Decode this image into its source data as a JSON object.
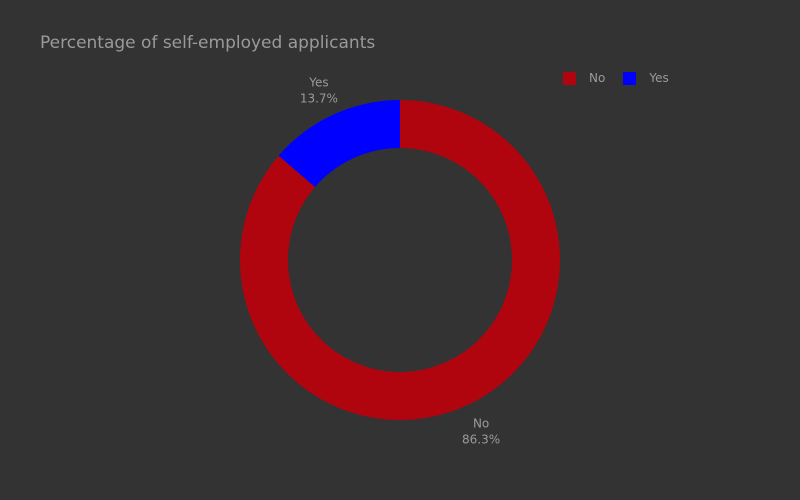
{
  "chart_data": {
    "type": "pie",
    "title": "Percentage of self-employed applicants",
    "hole": true,
    "categories": [
      "No",
      "Yes"
    ],
    "values": [
      86.3,
      13.7
    ],
    "labels": [
      "86.3%",
      "13.7%"
    ],
    "colors": [
      "#b0050f",
      "#0000ff"
    ],
    "legend_position": "top-right"
  }
}
